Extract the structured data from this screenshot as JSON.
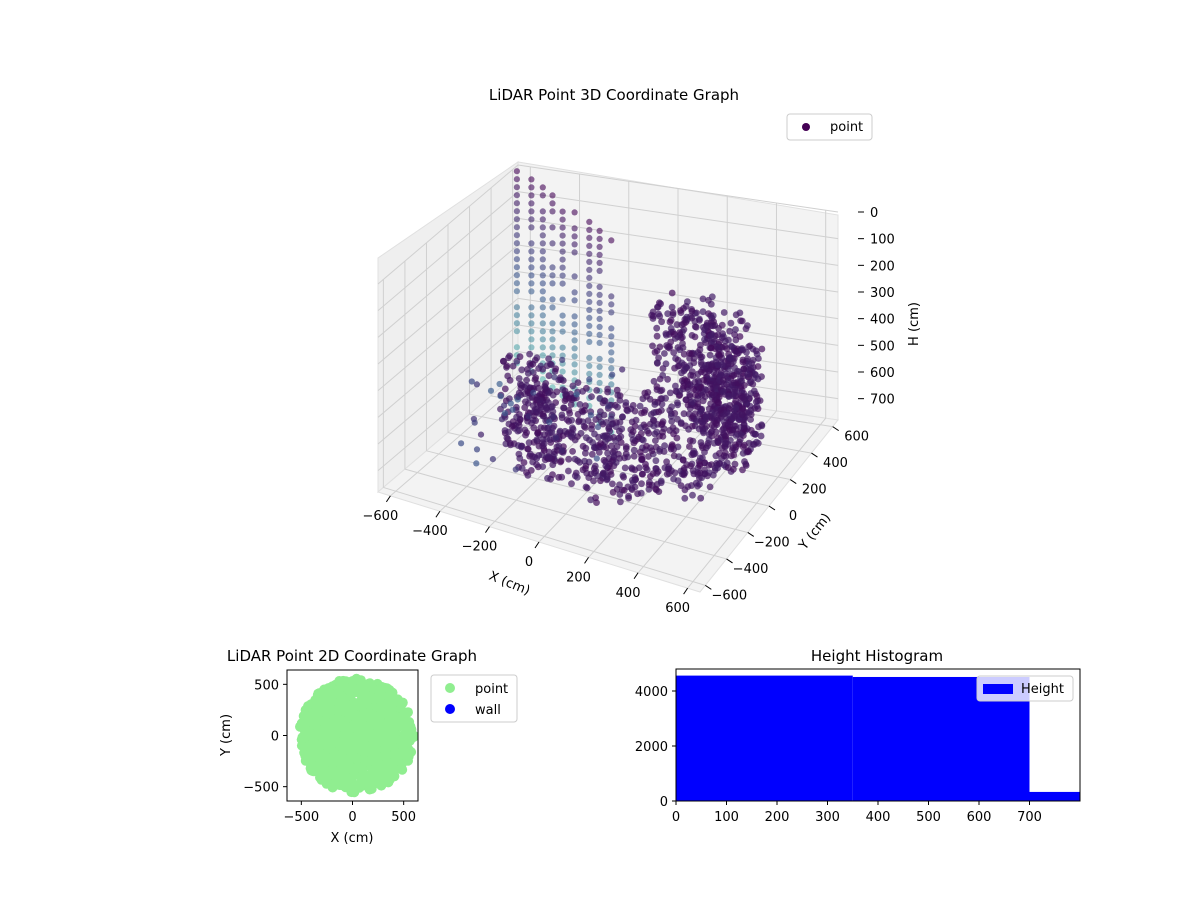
{
  "figure": {
    "background": "#ffffff"
  },
  "chart_data": [
    {
      "type": "scatter",
      "projection": "3d",
      "title": "LiDAR Point 3D Coordinate Graph",
      "xlabel": "X (cm)",
      "ylabel": "Y (cm)",
      "zlabel": "H (cm)",
      "x_ticks": [
        -600,
        -400,
        -200,
        0,
        200,
        400,
        600
      ],
      "y_ticks": [
        -600,
        -400,
        -200,
        0,
        200,
        400,
        600
      ],
      "z_ticks": [
        0,
        100,
        200,
        300,
        400,
        500,
        600,
        700
      ],
      "xlim": [
        -650,
        650
      ],
      "ylim": [
        -650,
        650
      ],
      "zlim": [
        780,
        0
      ],
      "zaxis_inverted": true,
      "colormap": "viridis",
      "color_low": "#440154",
      "color_high": "#5ec4b6",
      "grid": true,
      "legend": {
        "position": "upper-right",
        "entries": [
          "point"
        ]
      },
      "series": [
        {
          "name": "point",
          "color": "#440154",
          "description_points": "dense ring of ~4500 LiDAR returns, radius 350-550 cm, heights 300-700 cm, plus vertical wall columns on the left"
        }
      ]
    },
    {
      "type": "scatter",
      "title": "LiDAR Point 2D Coordinate Graph",
      "xlabel": "X (cm)",
      "ylabel": "Y (cm)",
      "x_ticks": [
        -500,
        0,
        500
      ],
      "y_ticks": [
        -500,
        0,
        500
      ],
      "xlim": [
        -640,
        640
      ],
      "ylim": [
        -640,
        640
      ],
      "legend": {
        "position": "outside-right",
        "entries": [
          "point",
          "wall"
        ]
      },
      "series": [
        {
          "name": "point",
          "color": "#90ee90"
        },
        {
          "name": "wall",
          "color": "#0000ff"
        }
      ]
    },
    {
      "type": "bar",
      "title": "Height Histogram",
      "x_ticks": [
        0,
        100,
        200,
        300,
        400,
        500,
        600,
        700
      ],
      "y_ticks": [
        0,
        2000,
        4000
      ],
      "xlim": [
        0,
        800
      ],
      "ylim": [
        0,
        4800
      ],
      "bins": [
        {
          "x0": 0,
          "x1": 350,
          "value": 4560
        },
        {
          "x0": 350,
          "x1": 700,
          "value": 4510
        },
        {
          "x0": 700,
          "x1": 800,
          "value": 330
        }
      ],
      "color": "#0000ff",
      "legend": {
        "position": "upper-right",
        "entries": [
          "Height"
        ]
      },
      "series": [
        {
          "name": "Height"
        }
      ]
    }
  ]
}
